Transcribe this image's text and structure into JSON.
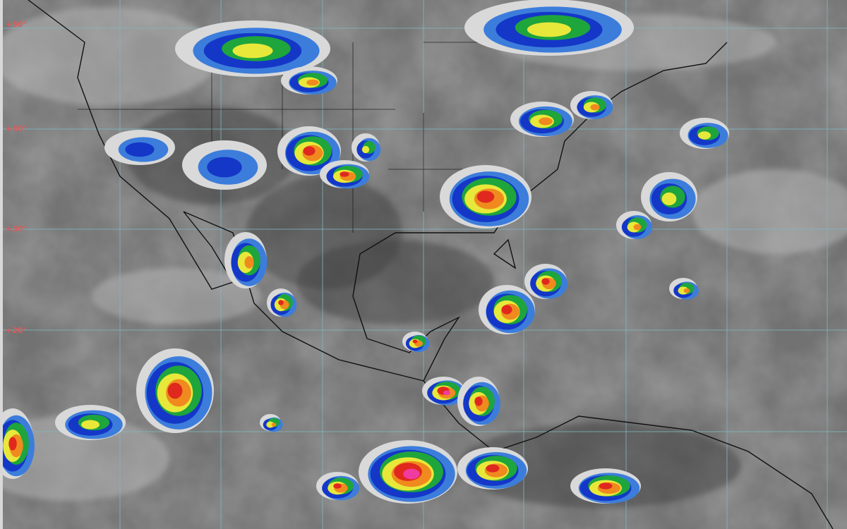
{
  "map": {
    "type": "enhanced infrared satellite image",
    "latitude_labels": [
      "+50°",
      "+40°",
      "+30°",
      "+20°"
    ],
    "colors": {
      "background_cold": "#5a5a5a",
      "background_warm": "#8a8a8a",
      "grid": "#7fb7c0",
      "borders": "#111111",
      "label": "#e05a5a",
      "cloud_scale": [
        "#d9d9d9",
        "#3c7ddb",
        "#1437c8",
        "#1ea53c",
        "#e8e83a",
        "#f08a1e",
        "#e0281e",
        "#f03ca0"
      ]
    }
  }
}
